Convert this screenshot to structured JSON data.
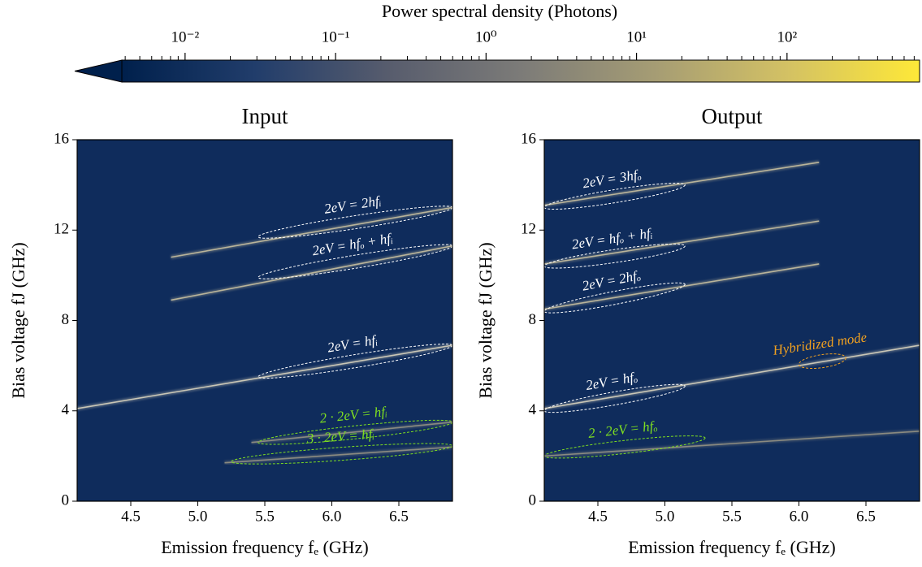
{
  "colorbar": {
    "label": "Power spectral density (Photons)",
    "log": true,
    "lim": [
      0.0038,
      760
    ],
    "ticks": [
      {
        "value": 0.01,
        "label": "10⁻²"
      },
      {
        "value": 0.1,
        "label": "10⁻¹"
      },
      {
        "value": 1,
        "label": "10⁰"
      },
      {
        "value": 10,
        "label": "10¹"
      },
      {
        "value": 100,
        "label": "10²"
      }
    ],
    "colormap": [
      "#00204c",
      "#213d6b",
      "#575c6d",
      "#7c7b78",
      "#a59c74",
      "#d3c164",
      "#fee838"
    ]
  },
  "chart_data": [
    {
      "type": "line",
      "title": "Input",
      "xlabel": "Emission frequency fₑ (GHz)",
      "ylabel": "Bias voltage fJ (GHz)",
      "xlim": [
        4.1,
        6.9
      ],
      "ylim": [
        0,
        16
      ],
      "xticks": [
        4.5,
        {
          "value": 5,
          "label": "5.0"
        },
        5.5,
        {
          "value": 6,
          "label": "6.0"
        },
        6.5
      ],
      "yticks": [
        0,
        4,
        8,
        12,
        16
      ],
      "series": [
        {
          "color": "#c9c6b6",
          "x": [
            4.1,
            6.9
          ],
          "values": [
            4.1,
            6.9
          ]
        },
        {
          "color": "#b9b49a",
          "x": [
            4.8,
            6.9
          ],
          "values": [
            8.9,
            11.3
          ]
        },
        {
          "color": "#b9b49a",
          "x": [
            4.8,
            6.9
          ],
          "values": [
            10.8,
            13.0
          ]
        },
        {
          "color": "#8a8a80",
          "x": [
            5.4,
            6.9
          ],
          "values": [
            2.6,
            3.5
          ]
        },
        {
          "color": "#8a8a80",
          "x": [
            5.2,
            6.9
          ],
          "values": [
            1.7,
            2.4
          ]
        }
      ],
      "annotations": [
        {
          "text": "2eV = 2hfᵢ",
          "color": "#ffffff",
          "x": [
            5.45,
            6.9
          ],
          "y": [
            11.7,
            13.0
          ]
        },
        {
          "text": "2eV = hfₒ + hfᵢ",
          "color": "#ffffff",
          "x": [
            5.45,
            6.9
          ],
          "y": [
            9.9,
            11.3
          ]
        },
        {
          "text": "2eV = hfᵢ",
          "color": "#ffffff",
          "x": [
            5.45,
            6.9
          ],
          "y": [
            5.5,
            6.9
          ]
        },
        {
          "text": "2 · 2eV = hfᵢ",
          "color": "#7fe020",
          "x": [
            5.45,
            6.9
          ],
          "y": [
            2.6,
            3.5
          ]
        },
        {
          "text": "3 · 2eV = hfᵢ",
          "color": "#7fe020",
          "x": [
            5.25,
            6.9
          ],
          "y": [
            1.75,
            2.45
          ]
        }
      ]
    },
    {
      "type": "line",
      "title": "Output",
      "xlabel": "Emission frequency fₑ (GHz)",
      "ylabel": "Bias voltage fJ (GHz)",
      "xlim": [
        4.1,
        6.9
      ],
      "ylim": [
        0,
        16
      ],
      "xticks": [
        4.5,
        {
          "value": 5,
          "label": "5.0"
        },
        5.5,
        {
          "value": 6,
          "label": "6.0"
        },
        6.5
      ],
      "yticks": [
        0,
        4,
        8,
        12,
        16
      ],
      "series": [
        {
          "color": "#c9c6b6",
          "x": [
            4.1,
            6.9
          ],
          "values": [
            4.1,
            6.9
          ]
        },
        {
          "color": "#b9b49a",
          "x": [
            4.1,
            6.15
          ],
          "values": [
            13.1,
            15.0
          ]
        },
        {
          "color": "#b9b49a",
          "x": [
            4.1,
            6.15
          ],
          "values": [
            10.5,
            12.4
          ]
        },
        {
          "color": "#b9b49a",
          "x": [
            4.1,
            6.15
          ],
          "values": [
            8.5,
            10.5
          ]
        },
        {
          "color": "#8a8a80",
          "x": [
            4.1,
            6.9
          ],
          "values": [
            2.0,
            3.1
          ]
        }
      ],
      "annotations": [
        {
          "text": "2eV = 3hfₒ",
          "color": "#ffffff",
          "x": [
            4.1,
            5.15
          ],
          "y": [
            13.0,
            14.0
          ]
        },
        {
          "text": "2eV = hfₒ + hfᵢ",
          "color": "#ffffff",
          "x": [
            4.1,
            5.15
          ],
          "y": [
            10.4,
            11.3
          ]
        },
        {
          "text": "2eV = 2hfₒ",
          "color": "#ffffff",
          "x": [
            4.1,
            5.15
          ],
          "y": [
            8.4,
            9.6
          ]
        },
        {
          "text": "2eV = hfₒ",
          "color": "#ffffff",
          "x": [
            4.1,
            5.15
          ],
          "y": [
            4.0,
            5.1
          ]
        },
        {
          "text": "2 · 2eV = hfₒ",
          "color": "#7fe020",
          "x": [
            4.1,
            5.3
          ],
          "y": [
            2.0,
            2.8
          ]
        },
        {
          "text": "Hybridized mode",
          "color": "#f0a020",
          "x": [
            6.0,
            6.35
          ],
          "y": [
            6.05,
            6.35
          ]
        }
      ]
    }
  ]
}
